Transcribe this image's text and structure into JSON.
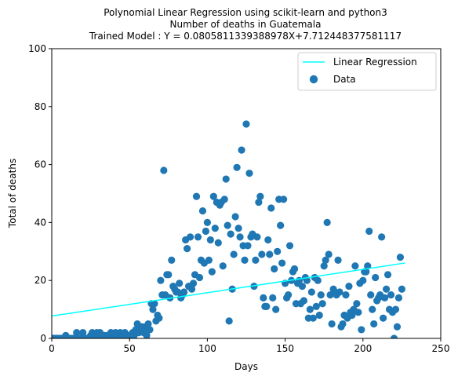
{
  "chart_data": {
    "type": "scatter",
    "title": [
      "Polynomial Linear Regression using scikit-learn and python3",
      "Number of deaths in Guatemala",
      "Trained Model : Y = 0.0805811339388978X+7.712448377581117"
    ],
    "xlabel": "Days",
    "ylabel": "Total of deaths",
    "xlim": [
      0,
      250
    ],
    "ylim": [
      0,
      100
    ],
    "xticks": [
      "0",
      "50",
      "100",
      "150",
      "200",
      "250"
    ],
    "yticks": [
      "0",
      "20",
      "40",
      "60",
      "80",
      "100"
    ],
    "grid": false,
    "legend_position": "top-right",
    "legend": [
      "Linear Regression",
      "Data"
    ],
    "regression": {
      "name": "Linear Regression",
      "slope": 0.0805811339388978,
      "intercept": 7.712448377581117,
      "x_range": [
        0,
        227
      ],
      "color": "#00ffff"
    },
    "series": [
      {
        "name": "Data",
        "color": "#1f77b4",
        "points": [
          [
            1,
            0
          ],
          [
            2,
            0
          ],
          [
            3,
            0
          ],
          [
            4,
            0
          ],
          [
            5,
            0
          ],
          [
            6,
            0
          ],
          [
            7,
            0
          ],
          [
            8,
            0
          ],
          [
            9,
            1
          ],
          [
            10,
            0
          ],
          [
            11,
            0
          ],
          [
            12,
            0
          ],
          [
            13,
            0
          ],
          [
            14,
            0
          ],
          [
            15,
            0
          ],
          [
            16,
            2
          ],
          [
            17,
            0
          ],
          [
            18,
            0
          ],
          [
            19,
            0
          ],
          [
            20,
            2
          ],
          [
            21,
            0
          ],
          [
            22,
            0
          ],
          [
            23,
            0
          ],
          [
            24,
            0
          ],
          [
            25,
            1
          ],
          [
            26,
            2
          ],
          [
            27,
            0
          ],
          [
            28,
            1
          ],
          [
            29,
            2
          ],
          [
            30,
            1
          ],
          [
            31,
            2
          ],
          [
            32,
            0
          ],
          [
            33,
            1
          ],
          [
            34,
            1
          ],
          [
            35,
            0
          ],
          [
            36,
            1
          ],
          [
            37,
            1
          ],
          [
            38,
            2
          ],
          [
            39,
            0
          ],
          [
            40,
            1
          ],
          [
            41,
            2
          ],
          [
            42,
            0
          ],
          [
            43,
            1
          ],
          [
            44,
            2
          ],
          [
            45,
            0
          ],
          [
            46,
            1
          ],
          [
            47,
            2
          ],
          [
            48,
            0
          ],
          [
            49,
            1
          ],
          [
            50,
            0
          ],
          [
            51,
            1
          ],
          [
            52,
            2
          ],
          [
            53,
            1
          ],
          [
            54,
            3
          ],
          [
            55,
            5
          ],
          [
            56,
            2
          ],
          [
            57,
            3
          ],
          [
            58,
            4
          ],
          [
            59,
            2
          ],
          [
            60,
            4
          ],
          [
            61,
            1
          ],
          [
            62,
            5
          ],
          [
            63,
            3
          ],
          [
            64,
            12
          ],
          [
            65,
            10
          ],
          [
            66,
            12
          ],
          [
            67,
            6
          ],
          [
            68,
            8
          ],
          [
            69,
            7
          ],
          [
            70,
            20
          ],
          [
            71,
            15
          ],
          [
            72,
            58
          ],
          [
            73,
            15
          ],
          [
            74,
            22
          ],
          [
            75,
            22
          ],
          [
            76,
            14
          ],
          [
            77,
            27
          ],
          [
            78,
            18
          ],
          [
            79,
            17
          ],
          [
            80,
            16
          ],
          [
            81,
            16
          ],
          [
            82,
            19
          ],
          [
            83,
            14
          ],
          [
            84,
            15
          ],
          [
            85,
            16
          ],
          [
            86,
            34
          ],
          [
            87,
            31
          ],
          [
            88,
            18
          ],
          [
            89,
            35
          ],
          [
            90,
            17
          ],
          [
            91,
            19
          ],
          [
            92,
            22
          ],
          [
            93,
            49
          ],
          [
            94,
            35
          ],
          [
            95,
            21
          ],
          [
            96,
            27
          ],
          [
            97,
            44
          ],
          [
            98,
            26
          ],
          [
            99,
            37
          ],
          [
            100,
            40
          ],
          [
            101,
            27
          ],
          [
            102,
            34
          ],
          [
            103,
            23
          ],
          [
            104,
            49
          ],
          [
            105,
            38
          ],
          [
            106,
            47
          ],
          [
            107,
            33
          ],
          [
            108,
            46
          ],
          [
            109,
            47
          ],
          [
            110,
            25
          ],
          [
            111,
            48
          ],
          [
            112,
            55
          ],
          [
            113,
            39
          ],
          [
            114,
            6
          ],
          [
            115,
            36
          ],
          [
            116,
            17
          ],
          [
            117,
            29
          ],
          [
            118,
            42
          ],
          [
            119,
            59
          ],
          [
            120,
            38
          ],
          [
            121,
            35
          ],
          [
            122,
            65
          ],
          [
            123,
            32
          ],
          [
            124,
            27
          ],
          [
            125,
            74
          ],
          [
            126,
            32
          ],
          [
            127,
            57
          ],
          [
            128,
            35
          ],
          [
            129,
            36
          ],
          [
            130,
            18
          ],
          [
            131,
            27
          ],
          [
            132,
            35
          ],
          [
            133,
            47
          ],
          [
            134,
            49
          ],
          [
            135,
            29
          ],
          [
            136,
            14
          ],
          [
            137,
            11
          ],
          [
            138,
            11
          ],
          [
            139,
            34
          ],
          [
            140,
            29
          ],
          [
            141,
            45
          ],
          [
            142,
            14
          ],
          [
            143,
            24
          ],
          [
            144,
            10
          ],
          [
            145,
            30
          ],
          [
            146,
            48
          ],
          [
            147,
            39
          ],
          [
            148,
            26
          ],
          [
            149,
            48
          ],
          [
            150,
            19
          ],
          [
            151,
            14
          ],
          [
            152,
            15
          ],
          [
            153,
            32
          ],
          [
            154,
            20
          ],
          [
            155,
            23
          ],
          [
            156,
            24
          ],
          [
            157,
            12
          ],
          [
            158,
            19
          ],
          [
            159,
            20
          ],
          [
            160,
            12
          ],
          [
            161,
            18
          ],
          [
            162,
            13
          ],
          [
            163,
            21
          ],
          [
            164,
            20
          ],
          [
            165,
            7
          ],
          [
            166,
            10
          ],
          [
            167,
            16
          ],
          [
            168,
            7
          ],
          [
            169,
            21
          ],
          [
            170,
            11
          ],
          [
            171,
            20
          ],
          [
            172,
            8
          ],
          [
            173,
            15
          ],
          [
            174,
            12
          ],
          [
            175,
            25
          ],
          [
            176,
            27
          ],
          [
            177,
            40
          ],
          [
            178,
            29
          ],
          [
            179,
            15
          ],
          [
            180,
            5
          ],
          [
            181,
            17
          ],
          [
            182,
            16
          ],
          [
            183,
            15
          ],
          [
            184,
            27
          ],
          [
            185,
            16
          ],
          [
            186,
            4
          ],
          [
            187,
            5
          ],
          [
            188,
            8
          ],
          [
            189,
            15
          ],
          [
            190,
            7
          ],
          [
            191,
            18
          ],
          [
            192,
            9
          ],
          [
            193,
            8
          ],
          [
            194,
            10
          ],
          [
            195,
            25
          ],
          [
            196,
            12
          ],
          [
            197,
            9
          ],
          [
            198,
            19
          ],
          [
            199,
            3
          ],
          [
            200,
            20
          ],
          [
            201,
            23
          ],
          [
            202,
            23
          ],
          [
            203,
            25
          ],
          [
            204,
            37
          ],
          [
            205,
            15
          ],
          [
            206,
            10
          ],
          [
            207,
            5
          ],
          [
            208,
            21
          ],
          [
            209,
            13
          ],
          [
            210,
            14
          ],
          [
            211,
            15
          ],
          [
            212,
            35
          ],
          [
            213,
            7
          ],
          [
            214,
            14
          ],
          [
            215,
            17
          ],
          [
            216,
            22
          ],
          [
            217,
            10
          ],
          [
            218,
            15
          ],
          [
            219,
            9
          ],
          [
            220,
            0
          ],
          [
            221,
            10
          ],
          [
            222,
            4
          ],
          [
            223,
            14
          ],
          [
            224,
            28
          ],
          [
            225,
            17
          ]
        ]
      }
    ]
  }
}
